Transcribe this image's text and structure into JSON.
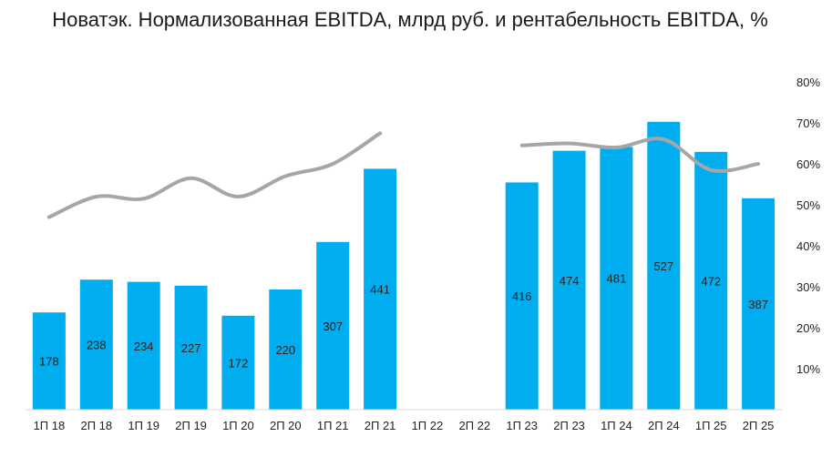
{
  "chart_data": {
    "type": "bar+line",
    "title": "Новатэк. Нормализованная EBITDA, млрд руб. и рентабельность EBITDA, %",
    "categories": [
      "1П 18",
      "2П 18",
      "1П 19",
      "2П 19",
      "1П 20",
      "2П 20",
      "1П 21",
      "2П 21",
      "1П 22",
      "2П 22",
      "1П 23",
      "2П 23",
      "1П 24",
      "2П 24",
      "1П 25",
      "2П 25"
    ],
    "series": [
      {
        "name": "Нормализованная EBITDA, млрд руб.",
        "type": "bar",
        "axis": "left",
        "values": [
          178,
          238,
          234,
          227,
          172,
          220,
          307,
          441,
          null,
          null,
          416,
          474,
          481,
          527,
          472,
          387
        ],
        "color": "#00AEEF"
      },
      {
        "name": "Рентабельность EBITDA, %",
        "type": "line",
        "axis": "right",
        "values": [
          47,
          52,
          51.5,
          56.5,
          52,
          57,
          60,
          67.5,
          null,
          null,
          64.5,
          65,
          64,
          66,
          58.5,
          60
        ],
        "color": "#A6A6A6"
      }
    ],
    "y2_ticks": [
      "10%",
      "20%",
      "30%",
      "40%",
      "50%",
      "60%",
      "70%",
      "80%"
    ],
    "y2_tick_values": [
      10,
      20,
      30,
      40,
      50,
      60,
      70,
      80
    ],
    "y2lim": [
      0,
      80
    ],
    "ylim": [
      0,
      600
    ],
    "grid": false,
    "legend": "none"
  }
}
